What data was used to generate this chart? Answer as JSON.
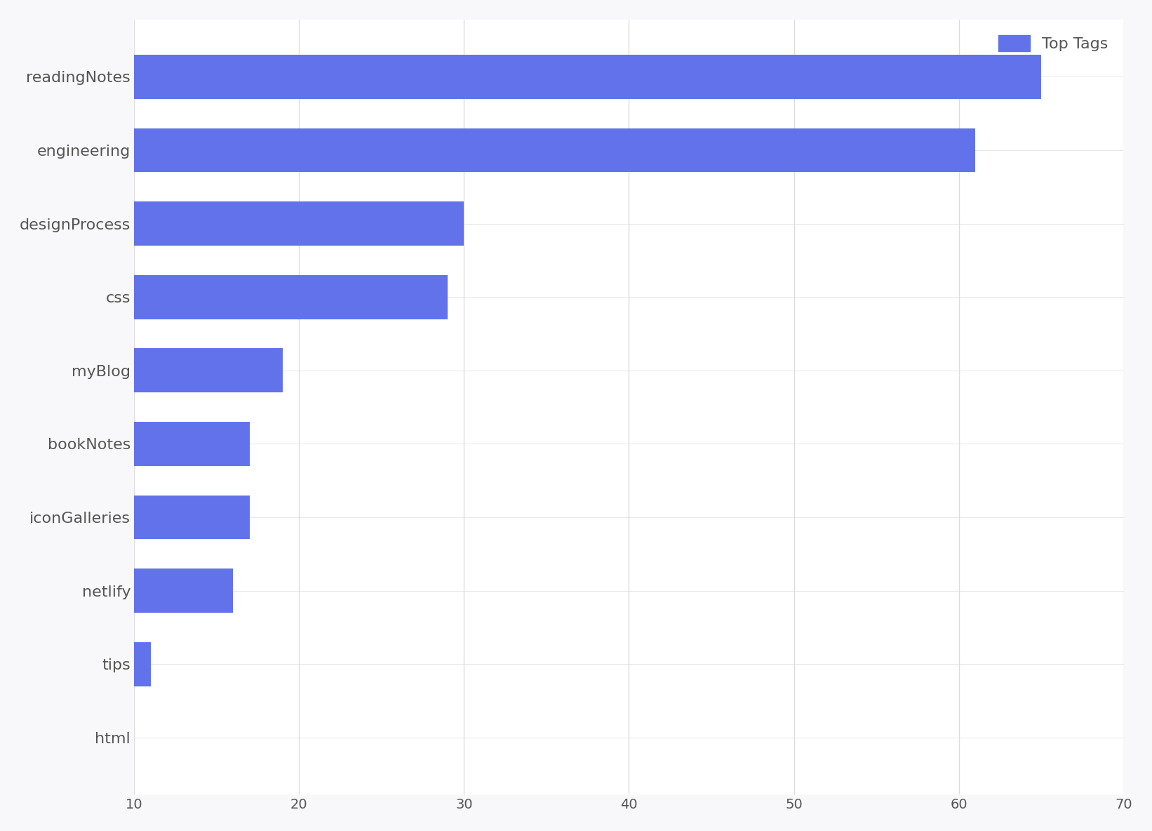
{
  "categories": [
    "html",
    "tips",
    "netlify",
    "iconGalleries",
    "bookNotes",
    "myBlog",
    "css",
    "designProcess",
    "engineering",
    "readingNotes"
  ],
  "values": [
    10,
    11,
    16,
    17,
    17,
    19,
    29,
    30,
    61,
    65
  ],
  "bar_color": "#6272ea",
  "legend_label": "Top Tags",
  "xlim": [
    10,
    70
  ],
  "xticks": [
    10,
    20,
    30,
    40,
    50,
    60,
    70
  ],
  "background_color": "#f8f8fa",
  "plot_background": "#ffffff",
  "grid_color": "#dddddd",
  "text_color": "#555555",
  "font_size_labels": 16,
  "font_size_ticks": 14,
  "font_size_legend": 16
}
